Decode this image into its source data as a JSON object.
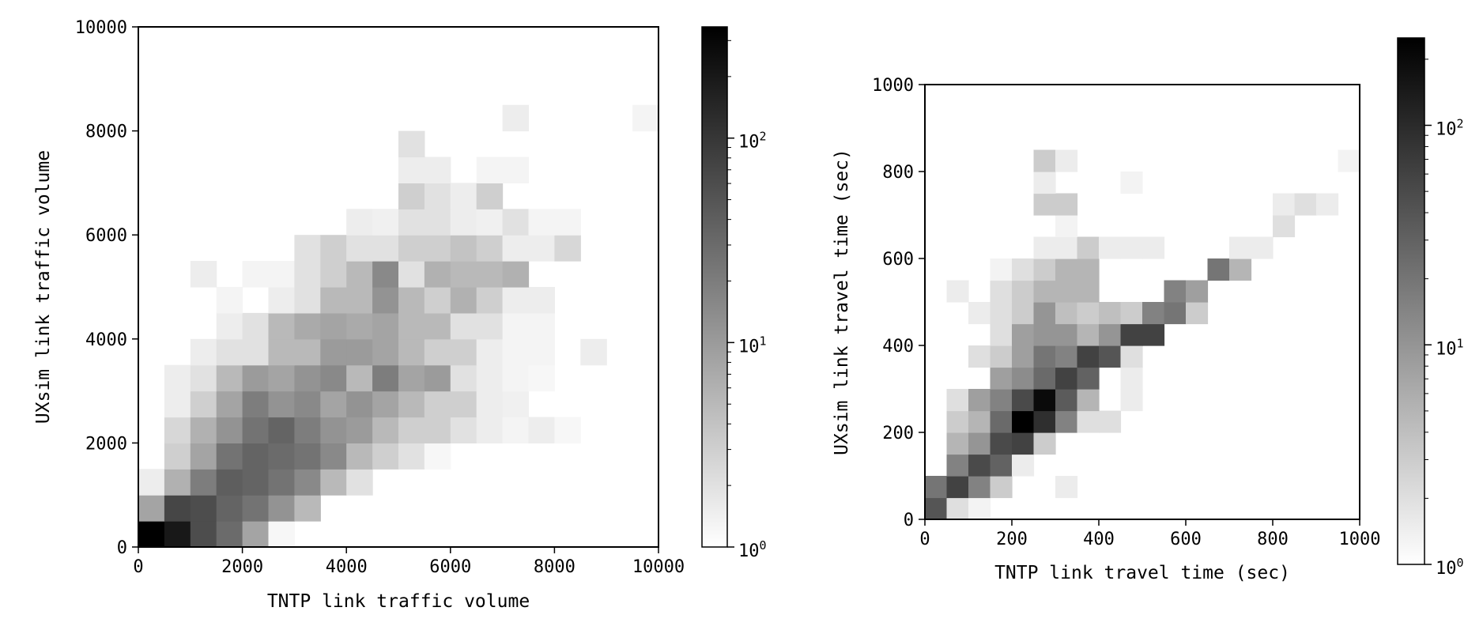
{
  "chart_data": [
    {
      "type": "heatmap",
      "title": "",
      "xlabel": "TNTP link traffic volume",
      "ylabel": "UXsim link traffic volume",
      "xlim": [
        0,
        10000
      ],
      "ylim": [
        0,
        10000
      ],
      "xticks": [
        "0",
        "2000",
        "4000",
        "6000",
        "8000",
        "10000"
      ],
      "yticks": [
        "0",
        "2000",
        "4000",
        "6000",
        "8000",
        "10000"
      ],
      "bins": 20,
      "bin_width": 500,
      "color_scale": "log",
      "colormap": "gray_r",
      "colorbar": {
        "range": [
          1,
          350
        ],
        "ticks": [
          "10^0",
          "10^1",
          "10^2"
        ]
      },
      "cells": [
        [
          0,
          0,
          350
        ],
        [
          1,
          0,
          200
        ],
        [
          2,
          0,
          60
        ],
        [
          3,
          0,
          30
        ],
        [
          4,
          0,
          8
        ],
        [
          5,
          0,
          1.2
        ],
        [
          0,
          1,
          8
        ],
        [
          1,
          1,
          70
        ],
        [
          2,
          1,
          60
        ],
        [
          3,
          1,
          35
        ],
        [
          4,
          1,
          25
        ],
        [
          5,
          1,
          12
        ],
        [
          6,
          1,
          5
        ],
        [
          0,
          2,
          1.5
        ],
        [
          1,
          2,
          6
        ],
        [
          2,
          2,
          20
        ],
        [
          3,
          2,
          40
        ],
        [
          4,
          2,
          35
        ],
        [
          5,
          2,
          25
        ],
        [
          6,
          2,
          15
        ],
        [
          7,
          2,
          5
        ],
        [
          8,
          2,
          2
        ],
        [
          1,
          3,
          3
        ],
        [
          2,
          3,
          8
        ],
        [
          3,
          3,
          25
        ],
        [
          4,
          3,
          35
        ],
        [
          5,
          3,
          30
        ],
        [
          6,
          3,
          25
        ],
        [
          7,
          3,
          15
        ],
        [
          8,
          3,
          5
        ],
        [
          9,
          3,
          3
        ],
        [
          10,
          3,
          2
        ],
        [
          11,
          3,
          1.2
        ],
        [
          1,
          4,
          2.5
        ],
        [
          2,
          4,
          6
        ],
        [
          3,
          4,
          12
        ],
        [
          4,
          4,
          25
        ],
        [
          5,
          4,
          35
        ],
        [
          6,
          4,
          20
        ],
        [
          7,
          4,
          12
        ],
        [
          8,
          4,
          10
        ],
        [
          9,
          4,
          5
        ],
        [
          10,
          4,
          3
        ],
        [
          11,
          4,
          3
        ],
        [
          12,
          4,
          2
        ],
        [
          13,
          4,
          1.5
        ],
        [
          14,
          4,
          1.3
        ],
        [
          15,
          4,
          1.5
        ],
        [
          16,
          4,
          1.2
        ],
        [
          1,
          5,
          1.5
        ],
        [
          2,
          5,
          3
        ],
        [
          3,
          5,
          8
        ],
        [
          4,
          5,
          20
        ],
        [
          5,
          5,
          12
        ],
        [
          6,
          5,
          15
        ],
        [
          7,
          5,
          8
        ],
        [
          8,
          5,
          12
        ],
        [
          9,
          5,
          8
        ],
        [
          10,
          5,
          5
        ],
        [
          11,
          5,
          3
        ],
        [
          12,
          5,
          3
        ],
        [
          13,
          5,
          1.5
        ],
        [
          14,
          5,
          1.4
        ],
        [
          1,
          6,
          1.5
        ],
        [
          2,
          6,
          2
        ],
        [
          3,
          6,
          5
        ],
        [
          4,
          6,
          10
        ],
        [
          5,
          6,
          8
        ],
        [
          6,
          6,
          12
        ],
        [
          7,
          6,
          15
        ],
        [
          8,
          6,
          5
        ],
        [
          9,
          6,
          20
        ],
        [
          10,
          6,
          8
        ],
        [
          11,
          6,
          10
        ],
        [
          12,
          6,
          2
        ],
        [
          13,
          6,
          1.5
        ],
        [
          14,
          6,
          1.3
        ],
        [
          15,
          6,
          1.2
        ],
        [
          2,
          7,
          1.5
        ],
        [
          3,
          7,
          2
        ],
        [
          4,
          7,
          2
        ],
        [
          5,
          7,
          5
        ],
        [
          6,
          7,
          5
        ],
        [
          7,
          7,
          10
        ],
        [
          8,
          7,
          10
        ],
        [
          9,
          7,
          8
        ],
        [
          10,
          7,
          5
        ],
        [
          11,
          7,
          3
        ],
        [
          12,
          7,
          3
        ],
        [
          13,
          7,
          1.5
        ],
        [
          14,
          7,
          1.3
        ],
        [
          15,
          7,
          1.3
        ],
        [
          17,
          7,
          1.5
        ],
        [
          3,
          8,
          1.5
        ],
        [
          4,
          8,
          2
        ],
        [
          5,
          8,
          5
        ],
        [
          6,
          8,
          7
        ],
        [
          7,
          8,
          8
        ],
        [
          8,
          8,
          7
        ],
        [
          9,
          8,
          8
        ],
        [
          10,
          8,
          5
        ],
        [
          11,
          8,
          5
        ],
        [
          12,
          8,
          2
        ],
        [
          13,
          8,
          2
        ],
        [
          14,
          8,
          1.3
        ],
        [
          15,
          8,
          1.3
        ],
        [
          3,
          9,
          1.3
        ],
        [
          5,
          9,
          1.5
        ],
        [
          6,
          9,
          2
        ],
        [
          7,
          9,
          5
        ],
        [
          8,
          9,
          5
        ],
        [
          9,
          9,
          12
        ],
        [
          10,
          9,
          5
        ],
        [
          11,
          9,
          3
        ],
        [
          12,
          9,
          6
        ],
        [
          13,
          9,
          3
        ],
        [
          14,
          9,
          1.5
        ],
        [
          15,
          9,
          1.5
        ],
        [
          2,
          10,
          1.5
        ],
        [
          4,
          10,
          1.3
        ],
        [
          5,
          10,
          1.3
        ],
        [
          6,
          10,
          2
        ],
        [
          7,
          10,
          3
        ],
        [
          8,
          10,
          5
        ],
        [
          9,
          10,
          15
        ],
        [
          10,
          10,
          2
        ],
        [
          11,
          10,
          6
        ],
        [
          12,
          10,
          5
        ],
        [
          13,
          10,
          5
        ],
        [
          14,
          10,
          6
        ],
        [
          6,
          11,
          2
        ],
        [
          7,
          11,
          3
        ],
        [
          8,
          11,
          2
        ],
        [
          9,
          11,
          2
        ],
        [
          10,
          11,
          3
        ],
        [
          11,
          11,
          3
        ],
        [
          12,
          11,
          4
        ],
        [
          13,
          11,
          3
        ],
        [
          14,
          11,
          1.5
        ],
        [
          15,
          11,
          1.5
        ],
        [
          16,
          11,
          2.5
        ],
        [
          8,
          12,
          1.5
        ],
        [
          9,
          12,
          1.4
        ],
        [
          10,
          12,
          2
        ],
        [
          11,
          12,
          2
        ],
        [
          12,
          12,
          1.5
        ],
        [
          13,
          12,
          1.4
        ],
        [
          14,
          12,
          2
        ],
        [
          15,
          12,
          1.3
        ],
        [
          16,
          12,
          1.3
        ],
        [
          10,
          13,
          3
        ],
        [
          11,
          13,
          2
        ],
        [
          12,
          13,
          1.5
        ],
        [
          13,
          13,
          3
        ],
        [
          10,
          14,
          1.5
        ],
        [
          11,
          14,
          1.5
        ],
        [
          13,
          14,
          1.3
        ],
        [
          14,
          14,
          1.3
        ],
        [
          10,
          15,
          2
        ],
        [
          14,
          16,
          1.5
        ],
        [
          19,
          16,
          1.3
        ]
      ]
    },
    {
      "type": "heatmap",
      "title": "",
      "xlabel": "TNTP link travel time (sec)",
      "ylabel": "UXsim link travel time (sec)",
      "xlim": [
        0,
        1000
      ],
      "ylim": [
        0,
        1000
      ],
      "xticks": [
        "0",
        "200",
        "400",
        "600",
        "800",
        "1000"
      ],
      "yticks": [
        "0",
        "200",
        "400",
        "600",
        "800",
        "1000"
      ],
      "bins": 20,
      "bin_width": 50,
      "color_scale": "log",
      "colormap": "gray_r",
      "colorbar": {
        "range": [
          1,
          250
        ],
        "ticks": [
          "10^0",
          "10^1",
          "10^2"
        ]
      },
      "cells": [
        [
          0,
          0,
          40
        ],
        [
          1,
          0,
          2
        ],
        [
          2,
          0,
          1.3
        ],
        [
          0,
          1,
          20
        ],
        [
          1,
          1,
          60
        ],
        [
          2,
          1,
          15
        ],
        [
          3,
          1,
          3
        ],
        [
          6,
          1,
          1.5
        ],
        [
          1,
          2,
          15
        ],
        [
          2,
          2,
          50
        ],
        [
          3,
          2,
          30
        ],
        [
          4,
          2,
          1.5
        ],
        [
          1,
          3,
          5
        ],
        [
          2,
          3,
          10
        ],
        [
          3,
          3,
          50
        ],
        [
          4,
          3,
          60
        ],
        [
          5,
          3,
          3
        ],
        [
          1,
          4,
          3
        ],
        [
          2,
          4,
          5
        ],
        [
          3,
          4,
          25
        ],
        [
          4,
          4,
          250
        ],
        [
          5,
          4,
          90
        ],
        [
          6,
          4,
          15
        ],
        [
          7,
          4,
          2
        ],
        [
          8,
          4,
          2
        ],
        [
          1,
          5,
          2
        ],
        [
          2,
          5,
          8
        ],
        [
          3,
          5,
          15
        ],
        [
          4,
          5,
          50
        ],
        [
          5,
          5,
          200
        ],
        [
          6,
          5,
          35
        ],
        [
          7,
          5,
          5
        ],
        [
          9,
          5,
          1.5
        ],
        [
          3,
          6,
          8
        ],
        [
          4,
          6,
          12
        ],
        [
          5,
          6,
          25
        ],
        [
          6,
          6,
          60
        ],
        [
          7,
          6,
          30
        ],
        [
          9,
          6,
          1.5
        ],
        [
          2,
          7,
          2
        ],
        [
          3,
          7,
          3
        ],
        [
          4,
          7,
          8
        ],
        [
          5,
          7,
          20
        ],
        [
          6,
          7,
          15
        ],
        [
          7,
          7,
          60
        ],
        [
          8,
          7,
          40
        ],
        [
          9,
          7,
          2
        ],
        [
          3,
          8,
          2
        ],
        [
          4,
          8,
          8
        ],
        [
          5,
          8,
          10
        ],
        [
          6,
          8,
          10
        ],
        [
          7,
          8,
          5
        ],
        [
          8,
          8,
          10
        ],
        [
          9,
          8,
          60
        ],
        [
          10,
          8,
          60
        ],
        [
          2,
          9,
          1.5
        ],
        [
          3,
          9,
          2
        ],
        [
          4,
          9,
          3
        ],
        [
          5,
          9,
          10
        ],
        [
          6,
          9,
          4
        ],
        [
          7,
          9,
          3
        ],
        [
          8,
          9,
          4
        ],
        [
          9,
          9,
          3
        ],
        [
          10,
          9,
          15
        ],
        [
          11,
          9,
          20
        ],
        [
          12,
          9,
          3
        ],
        [
          1,
          10,
          1.5
        ],
        [
          3,
          10,
          2
        ],
        [
          4,
          10,
          3
        ],
        [
          5,
          10,
          5
        ],
        [
          6,
          10,
          5
        ],
        [
          7,
          10,
          5
        ],
        [
          11,
          10,
          15
        ],
        [
          12,
          10,
          8
        ],
        [
          3,
          11,
          1.3
        ],
        [
          4,
          11,
          2
        ],
        [
          5,
          11,
          3
        ],
        [
          6,
          11,
          5
        ],
        [
          7,
          11,
          5
        ],
        [
          13,
          11,
          20
        ],
        [
          14,
          11,
          5
        ],
        [
          5,
          12,
          1.5
        ],
        [
          6,
          12,
          1.5
        ],
        [
          7,
          12,
          3
        ],
        [
          8,
          12,
          1.5
        ],
        [
          9,
          12,
          1.5
        ],
        [
          10,
          12,
          1.5
        ],
        [
          14,
          12,
          1.5
        ],
        [
          15,
          12,
          1.5
        ],
        [
          6,
          13,
          1.3
        ],
        [
          16,
          13,
          2
        ],
        [
          5,
          14,
          3
        ],
        [
          6,
          14,
          3
        ],
        [
          5,
          15,
          1.5
        ],
        [
          9,
          15,
          1.3
        ],
        [
          16,
          14,
          1.5
        ],
        [
          17,
          14,
          2
        ],
        [
          18,
          14,
          1.5
        ],
        [
          5,
          16,
          3
        ],
        [
          6,
          16,
          1.5
        ],
        [
          19,
          16,
          1.3
        ]
      ]
    }
  ]
}
